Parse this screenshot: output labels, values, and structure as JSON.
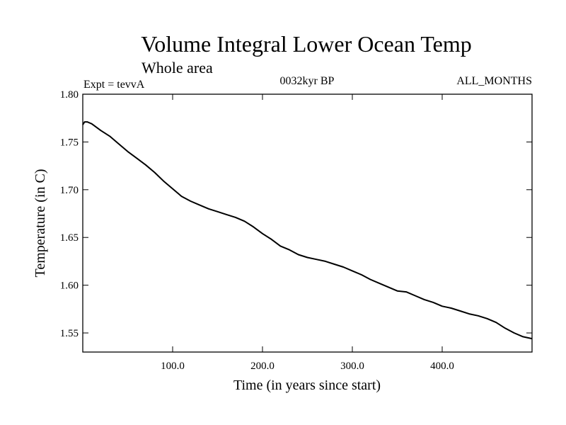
{
  "chart_data": {
    "type": "line",
    "title": "Volume Integral Lower Ocean Temp",
    "subtitle": "Whole area",
    "annotations": {
      "left": "Expt = tevvA",
      "center": "0032kyr BP",
      "right": "ALL_MONTHS"
    },
    "xlabel": "Time (in years since start)",
    "ylabel": "Temperature (in C)",
    "xlim": [
      0,
      500
    ],
    "ylim": [
      1.53,
      1.8
    ],
    "xticks": [
      100,
      200,
      300,
      400
    ],
    "xtick_labels": [
      "100.0",
      "200.0",
      "300.0",
      "400.0"
    ],
    "yticks": [
      1.55,
      1.6,
      1.65,
      1.7,
      1.75,
      1.8
    ],
    "ytick_labels": [
      "1.55",
      "1.60",
      "1.65",
      "1.70",
      "1.75",
      "1.80"
    ],
    "grid": false,
    "series": [
      {
        "color": "#000000",
        "x": [
          0,
          2,
          5,
          10,
          20,
          30,
          40,
          50,
          60,
          70,
          80,
          90,
          100,
          110,
          120,
          130,
          140,
          150,
          160,
          170,
          180,
          190,
          200,
          210,
          220,
          230,
          240,
          250,
          260,
          270,
          280,
          290,
          300,
          310,
          320,
          330,
          340,
          350,
          360,
          370,
          380,
          390,
          400,
          410,
          420,
          430,
          440,
          450,
          460,
          470,
          480,
          490,
          500
        ],
        "values": [
          1.768,
          1.771,
          1.771,
          1.769,
          1.762,
          1.756,
          1.748,
          1.74,
          1.733,
          1.726,
          1.718,
          1.709,
          1.701,
          1.693,
          1.688,
          1.684,
          1.68,
          1.677,
          1.674,
          1.671,
          1.667,
          1.661,
          1.654,
          1.648,
          1.641,
          1.637,
          1.632,
          1.629,
          1.627,
          1.625,
          1.622,
          1.619,
          1.615,
          1.611,
          1.606,
          1.602,
          1.598,
          1.594,
          1.593,
          1.589,
          1.585,
          1.582,
          1.578,
          1.576,
          1.573,
          1.57,
          1.568,
          1.565,
          1.561,
          1.555,
          1.55,
          1.546,
          1.544
        ]
      }
    ]
  }
}
